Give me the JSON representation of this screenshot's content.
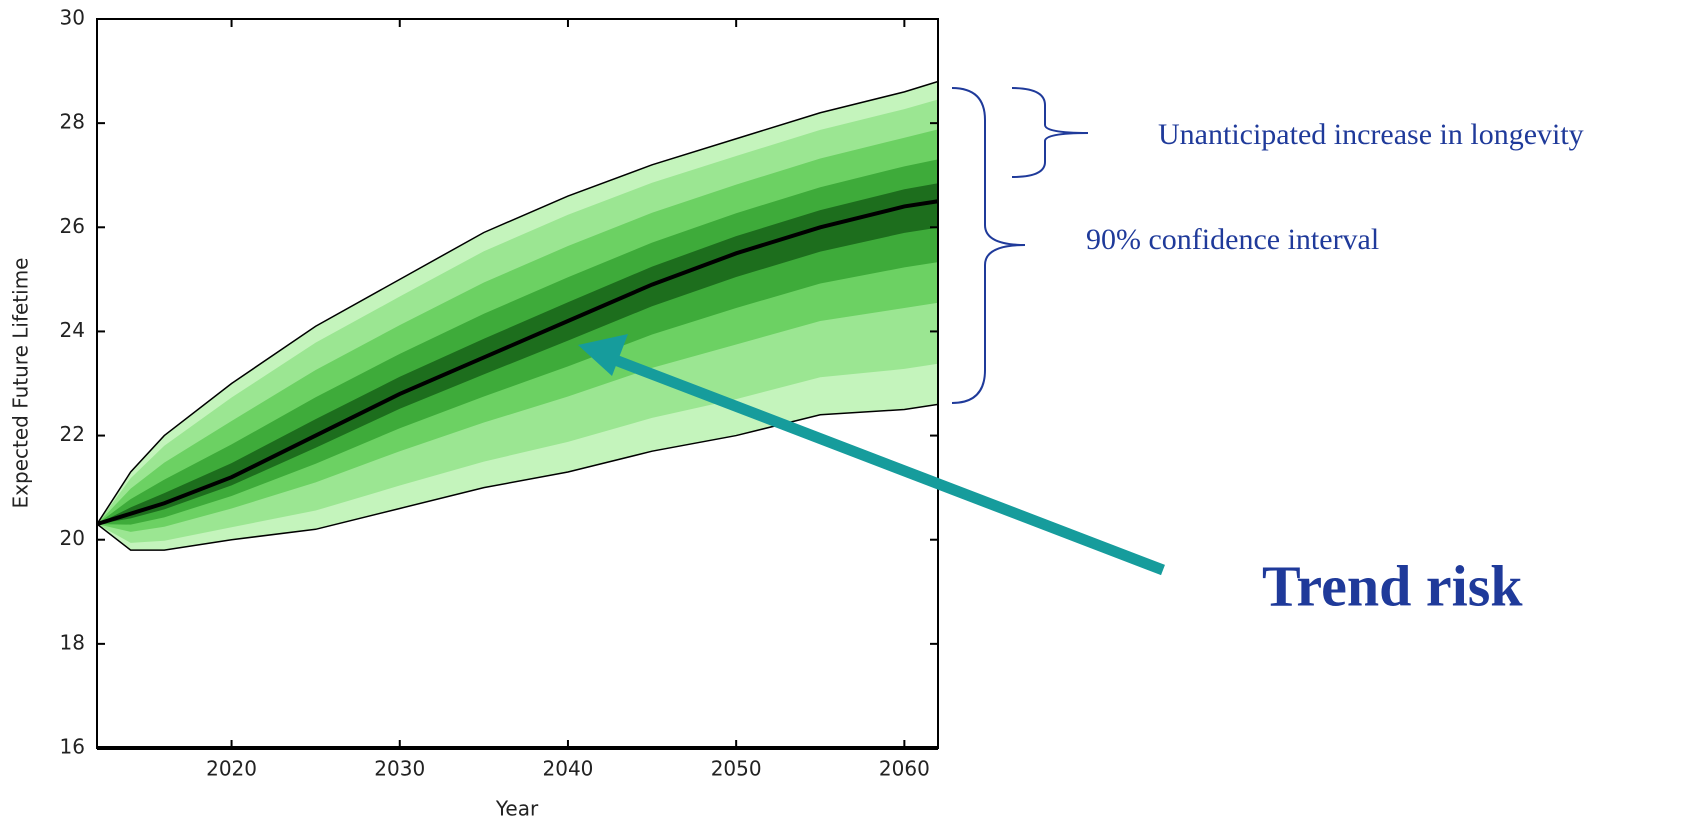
{
  "chart_data": {
    "type": "fan",
    "xlabel": "Year",
    "ylabel": "Expected Future Lifetime",
    "x": [
      2012,
      2014,
      2016,
      2020,
      2025,
      2030,
      2035,
      2040,
      2045,
      2050,
      2055,
      2060,
      2062
    ],
    "series": [
      {
        "values": [
          20.3,
          21.3,
          22.0,
          23.0,
          24.1,
          25.0,
          25.9,
          26.6,
          27.2,
          27.7,
          28.2,
          28.6,
          28.8
        ],
        "color": "#000000"
      },
      {
        "values": [
          20.3,
          20.5,
          20.7,
          21.2,
          22.0,
          22.8,
          23.5,
          24.2,
          24.9,
          25.5,
          26.0,
          26.4,
          26.5
        ],
        "color": "#000000"
      },
      {
        "values": [
          20.3,
          19.8,
          19.8,
          20.0,
          20.2,
          20.6,
          21.0,
          21.3,
          21.7,
          22.0,
          22.4,
          22.5,
          22.6
        ],
        "color": "#000000"
      }
    ],
    "xlim": [
      2012,
      2062
    ],
    "xticks": [
      2020,
      2030,
      2040,
      2050,
      2060
    ],
    "ylim": [
      16,
      30
    ],
    "yticks": [
      16,
      18,
      20,
      22,
      24,
      26,
      28,
      30
    ],
    "annotations": [
      "Unanticipated increase in longevity",
      "90% confidence interval",
      "Trend risk"
    ]
  }
}
